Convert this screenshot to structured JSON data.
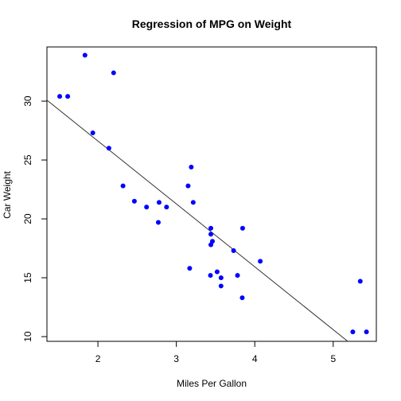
{
  "chart_data": {
    "type": "scatter",
    "title": "Regression of MPG on Weight",
    "xlabel": "Miles Per Gallon",
    "ylabel": "Car Weight",
    "xlim": [
      1.35,
      5.55
    ],
    "ylim": [
      9.6,
      34.6
    ],
    "xticks": [
      2,
      3,
      4,
      5
    ],
    "yticks": [
      10,
      15,
      20,
      25,
      30
    ],
    "grid": false,
    "point_color": "#0000ff",
    "line_color": "#333333",
    "regression_line": {
      "intercept": 37.29,
      "slope": -5.34
    },
    "points": [
      {
        "x": 1.513,
        "y": 30.4
      },
      {
        "x": 1.615,
        "y": 30.4
      },
      {
        "x": 1.835,
        "y": 33.9
      },
      {
        "x": 1.935,
        "y": 27.3
      },
      {
        "x": 2.14,
        "y": 26.0
      },
      {
        "x": 2.2,
        "y": 32.4
      },
      {
        "x": 2.32,
        "y": 22.8
      },
      {
        "x": 2.465,
        "y": 21.5
      },
      {
        "x": 2.62,
        "y": 21.0
      },
      {
        "x": 2.77,
        "y": 19.7
      },
      {
        "x": 2.78,
        "y": 21.4
      },
      {
        "x": 2.875,
        "y": 21.0
      },
      {
        "x": 3.15,
        "y": 22.8
      },
      {
        "x": 3.17,
        "y": 15.8
      },
      {
        "x": 3.19,
        "y": 24.4
      },
      {
        "x": 3.215,
        "y": 21.4
      },
      {
        "x": 3.435,
        "y": 15.2
      },
      {
        "x": 3.44,
        "y": 18.7
      },
      {
        "x": 3.44,
        "y": 19.2
      },
      {
        "x": 3.44,
        "y": 17.8
      },
      {
        "x": 3.46,
        "y": 18.1
      },
      {
        "x": 3.52,
        "y": 15.5
      },
      {
        "x": 3.57,
        "y": 15.0
      },
      {
        "x": 3.57,
        "y": 14.3
      },
      {
        "x": 3.73,
        "y": 17.3
      },
      {
        "x": 3.78,
        "y": 15.2
      },
      {
        "x": 3.84,
        "y": 13.3
      },
      {
        "x": 3.845,
        "y": 19.2
      },
      {
        "x": 4.07,
        "y": 16.4
      },
      {
        "x": 5.25,
        "y": 10.4
      },
      {
        "x": 5.345,
        "y": 14.7
      },
      {
        "x": 5.424,
        "y": 10.4
      }
    ]
  }
}
